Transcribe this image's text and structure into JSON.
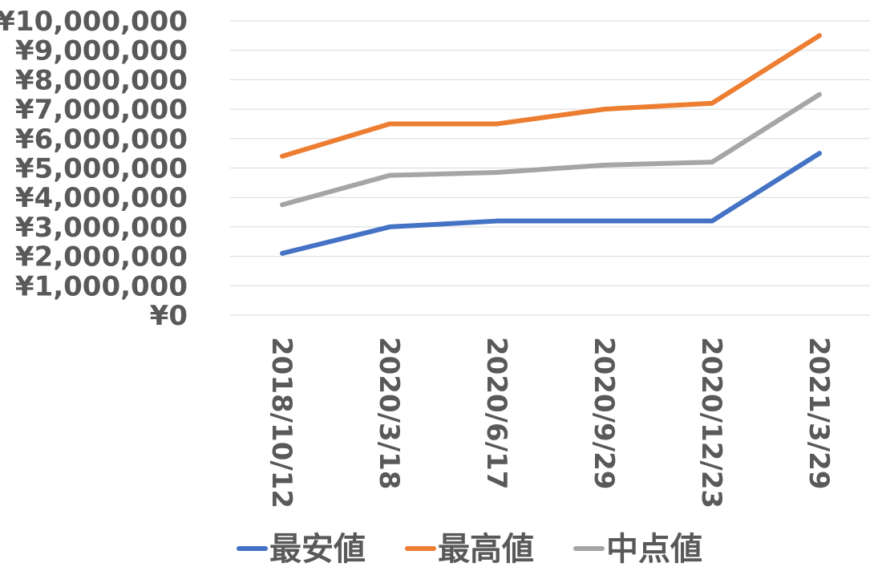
{
  "chart_data": {
    "type": "line",
    "title": "",
    "xlabel": "",
    "ylabel": "",
    "categories": [
      "2018/10/12",
      "2020/3/18",
      "2020/6/17",
      "2020/9/29",
      "2020/12/23",
      "2021/3/29"
    ],
    "y_tick_values": [
      0,
      1000000,
      2000000,
      3000000,
      4000000,
      5000000,
      6000000,
      7000000,
      8000000,
      9000000,
      10000000
    ],
    "y_tick_labels": [
      "¥0",
      "¥1,000,000",
      "¥2,000,000",
      "¥3,000,000",
      "¥4,000,000",
      "¥5,000,000",
      "¥6,000,000",
      "¥7,000,000",
      "¥8,000,000",
      "¥9,000,000",
      "¥10,000,000"
    ],
    "ylim": [
      0,
      10000000
    ],
    "grid": true,
    "legend_position": "bottom",
    "series": [
      {
        "name": "最安値",
        "color": "#4472C4",
        "values": [
          2100000,
          3000000,
          3200000,
          3200000,
          3200000,
          5500000
        ]
      },
      {
        "name": "最高値",
        "color": "#ED7D31",
        "values": [
          5400000,
          6500000,
          6500000,
          7000000,
          7200000,
          9500000
        ]
      },
      {
        "name": "中点値",
        "color": "#A5A5A5",
        "values": [
          3750000,
          4750000,
          4850000,
          5100000,
          5200000,
          7500000
        ]
      }
    ]
  }
}
